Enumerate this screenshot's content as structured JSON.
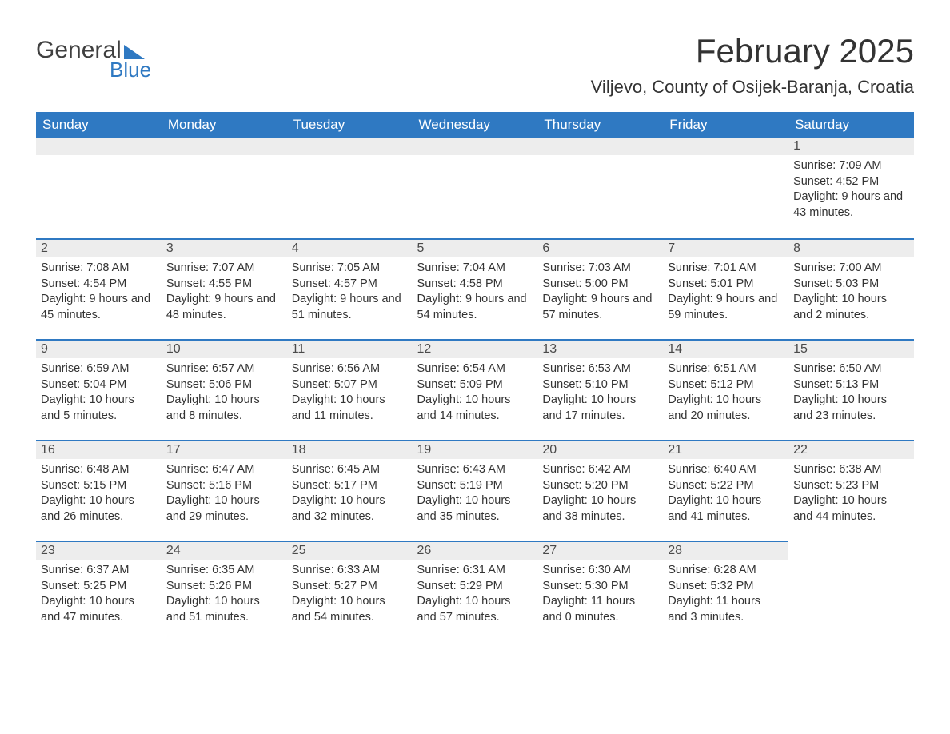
{
  "logo": {
    "word1": "General",
    "word2": "Blue",
    "accent_color": "#2f79c2",
    "text_color": "#404040"
  },
  "title": "February 2025",
  "location": "Viljevo, County of Osijek-Baranja, Croatia",
  "colors": {
    "header_bg": "#2f79c2",
    "header_text": "#ffffff",
    "row_stripe": "#ededed",
    "row_border": "#2f79c2",
    "body_text": "#333333",
    "page_bg": "#ffffff"
  },
  "weekdays": [
    "Sunday",
    "Monday",
    "Tuesday",
    "Wednesday",
    "Thursday",
    "Friday",
    "Saturday"
  ],
  "labels": {
    "sunrise": "Sunrise:",
    "sunset": "Sunset:",
    "daylight": "Daylight:"
  },
  "weeks": [
    [
      null,
      null,
      null,
      null,
      null,
      null,
      {
        "n": "1",
        "sr": "7:09 AM",
        "ss": "4:52 PM",
        "dl": "9 hours and 43 minutes."
      }
    ],
    [
      {
        "n": "2",
        "sr": "7:08 AM",
        "ss": "4:54 PM",
        "dl": "9 hours and 45 minutes."
      },
      {
        "n": "3",
        "sr": "7:07 AM",
        "ss": "4:55 PM",
        "dl": "9 hours and 48 minutes."
      },
      {
        "n": "4",
        "sr": "7:05 AM",
        "ss": "4:57 PM",
        "dl": "9 hours and 51 minutes."
      },
      {
        "n": "5",
        "sr": "7:04 AM",
        "ss": "4:58 PM",
        "dl": "9 hours and 54 minutes."
      },
      {
        "n": "6",
        "sr": "7:03 AM",
        "ss": "5:00 PM",
        "dl": "9 hours and 57 minutes."
      },
      {
        "n": "7",
        "sr": "7:01 AM",
        "ss": "5:01 PM",
        "dl": "9 hours and 59 minutes."
      },
      {
        "n": "8",
        "sr": "7:00 AM",
        "ss": "5:03 PM",
        "dl": "10 hours and 2 minutes."
      }
    ],
    [
      {
        "n": "9",
        "sr": "6:59 AM",
        "ss": "5:04 PM",
        "dl": "10 hours and 5 minutes."
      },
      {
        "n": "10",
        "sr": "6:57 AM",
        "ss": "5:06 PM",
        "dl": "10 hours and 8 minutes."
      },
      {
        "n": "11",
        "sr": "6:56 AM",
        "ss": "5:07 PM",
        "dl": "10 hours and 11 minutes."
      },
      {
        "n": "12",
        "sr": "6:54 AM",
        "ss": "5:09 PM",
        "dl": "10 hours and 14 minutes."
      },
      {
        "n": "13",
        "sr": "6:53 AM",
        "ss": "5:10 PM",
        "dl": "10 hours and 17 minutes."
      },
      {
        "n": "14",
        "sr": "6:51 AM",
        "ss": "5:12 PM",
        "dl": "10 hours and 20 minutes."
      },
      {
        "n": "15",
        "sr": "6:50 AM",
        "ss": "5:13 PM",
        "dl": "10 hours and 23 minutes."
      }
    ],
    [
      {
        "n": "16",
        "sr": "6:48 AM",
        "ss": "5:15 PM",
        "dl": "10 hours and 26 minutes."
      },
      {
        "n": "17",
        "sr": "6:47 AM",
        "ss": "5:16 PM",
        "dl": "10 hours and 29 minutes."
      },
      {
        "n": "18",
        "sr": "6:45 AM",
        "ss": "5:17 PM",
        "dl": "10 hours and 32 minutes."
      },
      {
        "n": "19",
        "sr": "6:43 AM",
        "ss": "5:19 PM",
        "dl": "10 hours and 35 minutes."
      },
      {
        "n": "20",
        "sr": "6:42 AM",
        "ss": "5:20 PM",
        "dl": "10 hours and 38 minutes."
      },
      {
        "n": "21",
        "sr": "6:40 AM",
        "ss": "5:22 PM",
        "dl": "10 hours and 41 minutes."
      },
      {
        "n": "22",
        "sr": "6:38 AM",
        "ss": "5:23 PM",
        "dl": "10 hours and 44 minutes."
      }
    ],
    [
      {
        "n": "23",
        "sr": "6:37 AM",
        "ss": "5:25 PM",
        "dl": "10 hours and 47 minutes."
      },
      {
        "n": "24",
        "sr": "6:35 AM",
        "ss": "5:26 PM",
        "dl": "10 hours and 51 minutes."
      },
      {
        "n": "25",
        "sr": "6:33 AM",
        "ss": "5:27 PM",
        "dl": "10 hours and 54 minutes."
      },
      {
        "n": "26",
        "sr": "6:31 AM",
        "ss": "5:29 PM",
        "dl": "10 hours and 57 minutes."
      },
      {
        "n": "27",
        "sr": "6:30 AM",
        "ss": "5:30 PM",
        "dl": "11 hours and 0 minutes."
      },
      {
        "n": "28",
        "sr": "6:28 AM",
        "ss": "5:32 PM",
        "dl": "11 hours and 3 minutes."
      },
      null
    ]
  ]
}
